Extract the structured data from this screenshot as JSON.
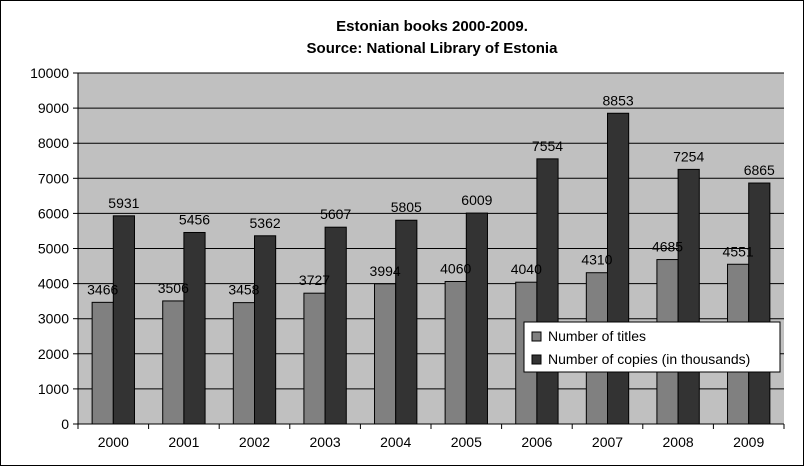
{
  "chart_data": {
    "type": "bar",
    "title": "Estonian books 2000-2009.",
    "subtitle": "Source: National Library of Estonia",
    "categories": [
      "2000",
      "2001",
      "2002",
      "2003",
      "2004",
      "2005",
      "2006",
      "2007",
      "2008",
      "2009"
    ],
    "series": [
      {
        "name": "Number of titles",
        "values": [
          3466,
          3506,
          3458,
          3727,
          3994,
          4060,
          4040,
          4310,
          4685,
          4551
        ]
      },
      {
        "name": "Number of copies (in thousands)",
        "values": [
          5931,
          5456,
          5362,
          5607,
          5805,
          6009,
          7554,
          8853,
          7254,
          6865
        ]
      }
    ],
    "ylim": [
      0,
      10000
    ],
    "yticks": [
      "0",
      "1000",
      "2000",
      "3000",
      "4000",
      "5000",
      "6000",
      "7000",
      "8000",
      "9000",
      "10000"
    ],
    "grid": true,
    "legend_position": "right",
    "colors": {
      "plot_background": "#c0c0c0",
      "titles_bar": "#808080",
      "copies_bar": "#333333",
      "gridline": "#000000"
    }
  }
}
